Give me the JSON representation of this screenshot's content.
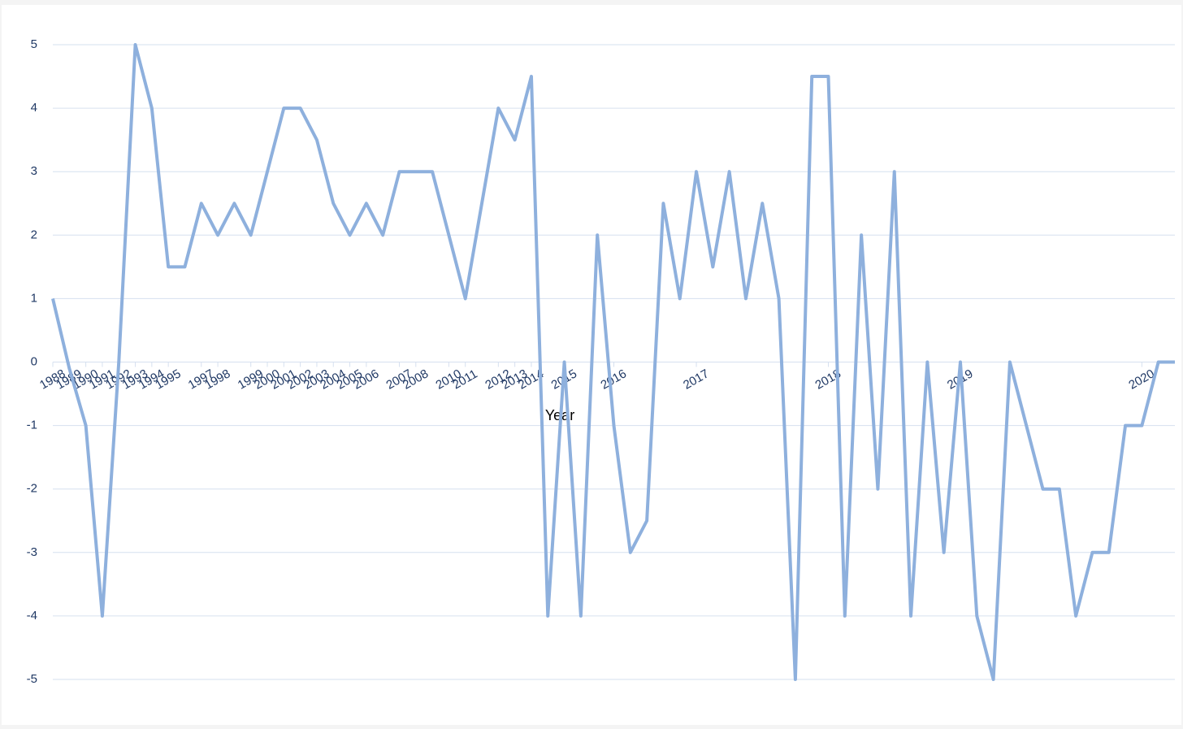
{
  "chart_data": {
    "type": "line",
    "x_label": "Year",
    "categories": [
      "1988",
      "1989",
      "1990",
      "1991",
      "1992",
      "1993",
      "1994",
      "1995",
      null,
      "1997",
      "1998",
      null,
      "1999",
      "2000",
      "2001",
      "2002",
      "2003",
      "2004",
      "2005",
      "2006",
      null,
      "2007",
      "2008",
      null,
      "2010",
      "2011",
      null,
      "2012",
      "2013",
      "2014",
      null,
      "2015",
      null,
      null,
      "2016",
      null,
      null,
      null,
      null,
      "2017",
      null,
      null,
      null,
      null,
      null,
      null,
      null,
      "2018",
      null,
      null,
      null,
      null,
      null,
      null,
      null,
      "2019",
      null,
      null,
      null,
      null,
      null,
      null,
      null,
      null,
      null,
      null,
      "2020",
      null,
      null
    ],
    "values": [
      1,
      -0.1,
      -1,
      -4,
      0,
      5,
      4,
      1.5,
      1.5,
      2.5,
      2,
      2.5,
      2,
      3,
      4,
      4,
      3.5,
      2.5,
      2,
      2.5,
      2,
      3,
      3,
      3,
      2,
      1,
      2.5,
      4,
      3.5,
      4.5,
      -4,
      0,
      -4,
      2,
      -1,
      -3,
      -2.5,
      2.5,
      1,
      3,
      1.5,
      3,
      1,
      2.5,
      1,
      -5,
      4.5,
      4.5,
      -4,
      2,
      -2,
      3,
      -4,
      0,
      -3,
      0,
      -4,
      -5,
      0,
      -1,
      -2,
      -2,
      -4,
      -3,
      -3,
      -1,
      -1,
      0,
      0
    ],
    "color": "#8eb0dd",
    "ylim": [
      -5,
      5
    ],
    "yticks": [
      -5,
      -4,
      -3,
      -2,
      -1,
      0,
      1,
      2,
      3,
      4,
      5
    ],
    "grid": true
  }
}
